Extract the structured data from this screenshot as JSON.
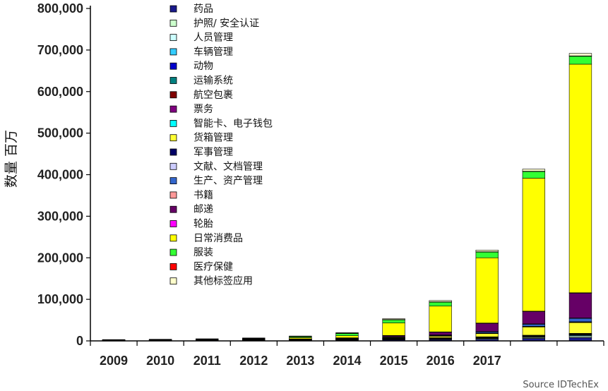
{
  "chart_data": {
    "type": "bar",
    "stacked": true,
    "title": "",
    "xlabel": "",
    "ylabel": "数量 百万",
    "ylim": [
      0,
      800000
    ],
    "yticks": [
      "0",
      "100,000",
      "200,000",
      "300,000",
      "400,000",
      "500,000",
      "600,000",
      "700,000",
      "800,000"
    ],
    "grid": false,
    "legend_position": "top-left",
    "source": "Source IDTechEx",
    "categories": [
      "2009",
      "2010",
      "2011",
      "2012",
      "2013",
      "2014",
      "2015",
      "2016",
      "2017",
      "",
      ""
    ],
    "series": [
      {
        "name": "药品",
        "color": "#1a1a8c",
        "values": [
          500,
          600,
          700,
          900,
          1200,
          1800,
          2500,
          3000,
          4000,
          6000,
          8000
        ]
      },
      {
        "name": "护照/ 安全认证",
        "color": "#ccffcc",
        "values": [
          300,
          400,
          500,
          600,
          700,
          900,
          1000,
          1200,
          1500,
          2000,
          2500
        ]
      },
      {
        "name": "人员管理",
        "color": "#ccffff",
        "values": [
          200,
          300,
          300,
          400,
          500,
          600,
          800,
          1000,
          1200,
          1500,
          2000
        ]
      },
      {
        "name": "车辆管理",
        "color": "#33ccff",
        "values": [
          100,
          100,
          200,
          200,
          300,
          400,
          500,
          600,
          800,
          1000,
          1500
        ]
      },
      {
        "name": "动物",
        "color": "#0000cc",
        "values": [
          100,
          100,
          100,
          200,
          200,
          300,
          400,
          500,
          600,
          800,
          1000
        ]
      },
      {
        "name": "运输系统",
        "color": "#008080",
        "values": [
          100,
          100,
          100,
          100,
          200,
          200,
          300,
          400,
          500,
          700,
          900
        ]
      },
      {
        "name": "航空包裹",
        "color": "#800000",
        "values": [
          100,
          100,
          100,
          100,
          100,
          200,
          300,
          300,
          400,
          500,
          700
        ]
      },
      {
        "name": "票务",
        "color": "#800080",
        "values": [
          100,
          100,
          100,
          100,
          200,
          200,
          300,
          400,
          500,
          700,
          900
        ]
      },
      {
        "name": "智能卡、电子钱包",
        "color": "#00ffff",
        "values": [
          100,
          100,
          100,
          100,
          100,
          200,
          200,
          300,
          400,
          500,
          700
        ]
      },
      {
        "name": "货箱管理",
        "color": "#ffff33",
        "values": [
          100,
          100,
          200,
          300,
          400,
          800,
          2000,
          4000,
          8000,
          20000,
          26000
        ]
      },
      {
        "name": "军事管理",
        "color": "#000066",
        "values": [
          100,
          100,
          100,
          100,
          100,
          200,
          300,
          400,
          500,
          700,
          900
        ]
      },
      {
        "name": "文献、文档管理",
        "color": "#ccccff",
        "values": [
          100,
          100,
          100,
          100,
          100,
          200,
          300,
          400,
          600,
          800,
          1000
        ]
      },
      {
        "name": "生产、资产管理",
        "color": "#3366cc",
        "values": [
          100,
          100,
          100,
          200,
          200,
          400,
          800,
          1500,
          3000,
          5000,
          8000
        ]
      },
      {
        "name": "书籍",
        "color": "#ff9999",
        "values": [
          50,
          50,
          50,
          100,
          100,
          200,
          300,
          400,
          600,
          800,
          1000
        ]
      },
      {
        "name": "邮递",
        "color": "#660066",
        "values": [
          100,
          100,
          100,
          200,
          300,
          800,
          3000,
          7000,
          20000,
          30000,
          60000
        ]
      },
      {
        "name": "轮胎",
        "color": "#ff00ff",
        "values": [
          50,
          50,
          50,
          50,
          100,
          100,
          200,
          300,
          400,
          600,
          800
        ]
      },
      {
        "name": "日常消费品",
        "color": "#ffff00",
        "values": [
          200,
          300,
          500,
          1000,
          3000,
          5000,
          30000,
          62000,
          157000,
          320000,
          550000
        ]
      },
      {
        "name": "服装",
        "color": "#33ff33",
        "values": [
          500,
          800,
          1200,
          1800,
          3000,
          6000,
          8000,
          10000,
          14000,
          16000,
          19000
        ]
      },
      {
        "name": "医疗保健",
        "color": "#ff0000",
        "values": [
          50,
          50,
          100,
          100,
          100,
          200,
          300,
          400,
          600,
          800,
          1000
        ]
      },
      {
        "name": "其他标签应用",
        "color": "#ffffcc",
        "values": [
          200,
          300,
          400,
          500,
          800,
          1200,
          2000,
          3000,
          4000,
          5000,
          6000
        ]
      }
    ]
  }
}
